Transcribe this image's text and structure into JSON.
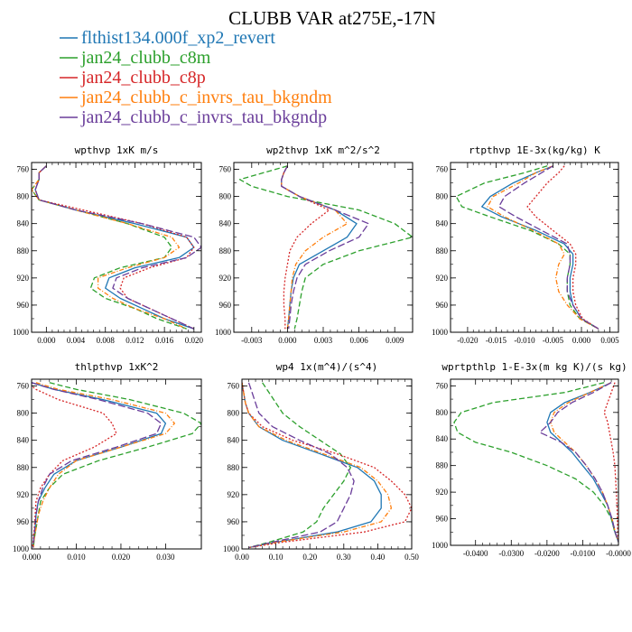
{
  "title": "CLUBB VAR at275E,-17N",
  "series": [
    {
      "name": "flthist134.000f_xp2_revert",
      "color": "#1f77b4",
      "dash": ""
    },
    {
      "name": "jan24_clubb_c8m",
      "color": "#2ca02c",
      "dash": "6,3"
    },
    {
      "name": "jan24_clubb_c8p",
      "color": "#d62728",
      "dash": "2,2"
    },
    {
      "name": "jan24_clubb_c_invrs_tau_bkgndm",
      "color": "#ff7f0e",
      "dash": "5,2,1,2"
    },
    {
      "name": "jan24_clubb_c_invrs_tau_bkgndp",
      "color": "#6a3d9a",
      "dash": "8,3"
    }
  ],
  "chart_data": [
    {
      "type": "line",
      "title": "wpthvp  1xK m/s",
      "xlim": [
        -0.002,
        0.021
      ],
      "ylim": [
        1000,
        750
      ],
      "xticks": [
        0.0,
        0.004,
        0.008,
        0.012,
        0.016,
        0.02
      ],
      "xtick_labels": [
        "0.000",
        "0.004",
        "0.008",
        "0.012",
        "0.016",
        "0.020"
      ],
      "yticks": [
        760,
        800,
        840,
        880,
        920,
        960,
        1000
      ],
      "y": [
        755,
        765,
        775,
        790,
        805,
        820,
        840,
        860,
        875,
        890,
        905,
        920,
        935,
        950,
        965,
        980,
        995
      ],
      "series_x": [
        [
          0.0,
          -0.001,
          -0.001,
          -0.0015,
          -0.001,
          0.004,
          0.012,
          0.019,
          0.02,
          0.018,
          0.012,
          0.0085,
          0.008,
          0.01,
          0.013,
          0.016,
          0.02
        ],
        [
          0.0,
          -0.001,
          -0.001,
          -0.002,
          -0.001,
          0.004,
          0.011,
          0.016,
          0.017,
          0.016,
          0.01,
          0.0065,
          0.006,
          0.008,
          0.012,
          0.015,
          0.019
        ],
        [
          0.0,
          -0.001,
          -0.001,
          -0.0015,
          -0.001,
          0.005,
          0.013,
          0.019,
          0.02,
          0.019,
          0.014,
          0.0105,
          0.01,
          0.011,
          0.014,
          0.017,
          0.02
        ],
        [
          0.0,
          -0.001,
          -0.001,
          -0.002,
          -0.001,
          0.004,
          0.011,
          0.017,
          0.018,
          0.016,
          0.011,
          0.007,
          0.007,
          0.009,
          0.012,
          0.016,
          0.019
        ],
        [
          0.0,
          -0.001,
          -0.001,
          -0.0015,
          -0.001,
          0.004,
          0.013,
          0.02,
          0.021,
          0.019,
          0.013,
          0.0095,
          0.009,
          0.011,
          0.014,
          0.017,
          0.02
        ]
      ]
    },
    {
      "type": "line",
      "title": "wp2thvp  1xK m^2/s^2",
      "xlim": [
        -0.0045,
        0.0105
      ],
      "ylim": [
        1000,
        750
      ],
      "xticks": [
        -0.003,
        0.0,
        0.003,
        0.006,
        0.009
      ],
      "xtick_labels": [
        "-0.003",
        "0.000",
        "0.003",
        "0.006",
        "0.009"
      ],
      "yticks": [
        760,
        800,
        840,
        880,
        920,
        960,
        1000
      ],
      "y": [
        755,
        765,
        775,
        785,
        800,
        820,
        840,
        860,
        880,
        900,
        920,
        940,
        960,
        980,
        995
      ],
      "series_x": [
        [
          0.0,
          -0.0003,
          -0.0005,
          -0.0005,
          0.001,
          0.004,
          0.0058,
          0.005,
          0.003,
          0.001,
          0.0005,
          0.0003,
          0.0002,
          0.0001,
          0.0
        ],
        [
          0.0,
          -0.002,
          -0.004,
          -0.003,
          0.0,
          0.006,
          0.009,
          0.0105,
          0.006,
          0.003,
          0.0015,
          0.0012,
          0.001,
          0.0008,
          0.0006
        ],
        [
          0.0,
          -0.0003,
          -0.0005,
          -0.0005,
          0.001,
          0.0035,
          0.002,
          0.0008,
          0.0002,
          0.0,
          -0.0002,
          -0.0003,
          -0.0003,
          -0.0002,
          -0.0002
        ],
        [
          0.0,
          -0.0003,
          -0.0005,
          -0.0005,
          0.001,
          0.004,
          0.005,
          0.003,
          0.0015,
          0.0007,
          0.0004,
          0.0003,
          0.0002,
          0.0001,
          0.0
        ],
        [
          0.0,
          -0.0003,
          -0.0005,
          -0.0005,
          0.001,
          0.004,
          0.0068,
          0.006,
          0.0035,
          0.0015,
          0.0008,
          0.0005,
          0.0003,
          0.0002,
          0.0001
        ]
      ]
    },
    {
      "type": "line",
      "title": "rtpthvp  1E-3x(kg/kg) K",
      "xlim": [
        -0.023,
        0.0065
      ],
      "ylim": [
        1000,
        750
      ],
      "xticks": [
        -0.02,
        -0.015,
        -0.01,
        -0.005,
        0.0,
        0.005
      ],
      "xtick_labels": [
        "-0.020",
        "-0.015",
        "-0.010",
        "-0.005",
        "0.000",
        "0.005"
      ],
      "yticks": [
        760,
        800,
        840,
        880,
        920,
        960,
        1000
      ],
      "y": [
        755,
        765,
        780,
        800,
        815,
        830,
        850,
        870,
        885,
        900,
        920,
        940,
        960,
        980,
        995
      ],
      "series_x": [
        [
          -0.005,
          -0.008,
          -0.012,
          -0.016,
          -0.0175,
          -0.014,
          -0.008,
          -0.003,
          -0.0015,
          -0.0015,
          -0.002,
          -0.002,
          -0.0015,
          0.0,
          0.003
        ],
        [
          -0.006,
          -0.01,
          -0.017,
          -0.022,
          -0.021,
          -0.016,
          -0.009,
          -0.004,
          -0.002,
          -0.002,
          -0.0025,
          -0.0025,
          -0.002,
          -0.0003,
          0.003
        ],
        [
          -0.003,
          -0.004,
          -0.006,
          -0.008,
          -0.0095,
          -0.008,
          -0.005,
          -0.002,
          -0.001,
          -0.001,
          -0.0015,
          -0.0015,
          -0.001,
          0.0002,
          0.003
        ],
        [
          -0.005,
          -0.008,
          -0.011,
          -0.0155,
          -0.0165,
          -0.0135,
          -0.0085,
          -0.004,
          -0.003,
          -0.004,
          -0.0045,
          -0.004,
          -0.0025,
          -0.0003,
          0.003
        ],
        [
          -0.005,
          -0.007,
          -0.01,
          -0.0135,
          -0.0145,
          -0.0115,
          -0.007,
          -0.0025,
          -0.002,
          -0.002,
          -0.0025,
          -0.0025,
          -0.0015,
          0.0,
          0.003
        ]
      ]
    },
    {
      "type": "line",
      "title": "thlpthvp  1xK^2",
      "xlim": [
        0.0,
        0.038
      ],
      "ylim": [
        1000,
        750
      ],
      "xticks": [
        0.0,
        0.01,
        0.02,
        0.03
      ],
      "xtick_labels": [
        "0.000",
        "0.010",
        "0.020",
        "0.030"
      ],
      "yticks": [
        760,
        800,
        840,
        880,
        920,
        960,
        1000
      ],
      "y": [
        755,
        765,
        780,
        800,
        815,
        830,
        850,
        870,
        890,
        910,
        930,
        950,
        970,
        985,
        998
      ],
      "series_x": [
        [
          0.0,
          0.005,
          0.016,
          0.028,
          0.03,
          0.029,
          0.02,
          0.01,
          0.005,
          0.003,
          0.0015,
          0.001,
          0.0008,
          0.0005,
          0.0003
        ],
        [
          0.004,
          0.01,
          0.022,
          0.034,
          0.038,
          0.036,
          0.026,
          0.015,
          0.007,
          0.004,
          0.002,
          0.0015,
          0.001,
          0.0006,
          0.0004
        ],
        [
          -0.001,
          0.001,
          0.006,
          0.016,
          0.018,
          0.019,
          0.014,
          0.007,
          0.004,
          0.002,
          0.001,
          0.0008,
          0.0006,
          0.0004,
          0.0002
        ],
        [
          0.001,
          0.006,
          0.018,
          0.03,
          0.032,
          0.03,
          0.02,
          0.01,
          0.006,
          0.004,
          0.0025,
          0.0015,
          0.001,
          0.0006,
          0.0004
        ],
        [
          0.0,
          0.005,
          0.015,
          0.026,
          0.029,
          0.028,
          0.019,
          0.009,
          0.004,
          0.0025,
          0.0015,
          0.001,
          0.0007,
          0.0005,
          0.0003
        ]
      ]
    },
    {
      "type": "line",
      "title": "wp4  1x(m^4)/(s^4)",
      "xlim": [
        0.0,
        0.5
      ],
      "ylim": [
        1000,
        750
      ],
      "xticks": [
        0.0,
        0.1,
        0.2,
        0.3,
        0.4,
        0.5
      ],
      "xtick_labels": [
        "0.00",
        "0.10",
        "0.20",
        "0.30",
        "0.40",
        "0.50"
      ],
      "yticks": [
        760,
        800,
        840,
        880,
        920,
        960,
        1000
      ],
      "y": [
        755,
        770,
        785,
        800,
        820,
        840,
        860,
        880,
        900,
        920,
        940,
        960,
        975,
        990,
        998
      ],
      "series_x": [
        [
          0.0,
          0.005,
          0.01,
          0.02,
          0.05,
          0.12,
          0.23,
          0.34,
          0.39,
          0.41,
          0.41,
          0.38,
          0.28,
          0.1,
          0.02
        ],
        [
          0.06,
          0.08,
          0.1,
          0.12,
          0.17,
          0.23,
          0.29,
          0.32,
          0.3,
          0.27,
          0.24,
          0.22,
          0.18,
          0.08,
          0.02
        ],
        [
          0.0,
          0.005,
          0.01,
          0.02,
          0.06,
          0.15,
          0.28,
          0.39,
          0.44,
          0.48,
          0.5,
          0.48,
          0.36,
          0.12,
          0.02
        ],
        [
          0.0,
          0.005,
          0.01,
          0.02,
          0.05,
          0.13,
          0.24,
          0.35,
          0.4,
          0.43,
          0.44,
          0.41,
          0.3,
          0.1,
          0.02
        ],
        [
          0.02,
          0.03,
          0.04,
          0.05,
          0.09,
          0.17,
          0.26,
          0.31,
          0.33,
          0.32,
          0.3,
          0.28,
          0.23,
          0.09,
          0.02
        ]
      ]
    },
    {
      "type": "line",
      "title": "wprtpthlp  1-E-3x(m kg K)/(s kg)",
      "xlim": [
        -0.047,
        0.0
      ],
      "ylim": [
        1000,
        750
      ],
      "xticks": [
        -0.04,
        -0.03,
        -0.02,
        -0.01,
        0.0
      ],
      "xtick_labels": [
        "-0.0400",
        "-0.0300",
        "-0.0200",
        "-0.0100",
        "-0.0000"
      ],
      "yticks": [
        760,
        800,
        840,
        880,
        920,
        960,
        1000
      ],
      "y": [
        755,
        770,
        785,
        800,
        815,
        830,
        845,
        860,
        880,
        900,
        920,
        940,
        960,
        980,
        995
      ],
      "series_x": [
        [
          -0.002,
          -0.008,
          -0.015,
          -0.019,
          -0.02,
          -0.019,
          -0.016,
          -0.013,
          -0.01,
          -0.007,
          -0.005,
          -0.003,
          -0.002,
          -0.001,
          0.0
        ],
        [
          -0.004,
          -0.015,
          -0.035,
          -0.044,
          -0.046,
          -0.045,
          -0.04,
          -0.03,
          -0.02,
          -0.012,
          -0.007,
          -0.004,
          -0.002,
          -0.001,
          0.0
        ],
        [
          -0.001,
          -0.002,
          -0.003,
          -0.004,
          -0.003,
          -0.0025,
          -0.002,
          -0.0015,
          -0.001,
          -0.0008,
          -0.0006,
          -0.0004,
          -0.0003,
          -0.0002,
          0.0
        ],
        [
          -0.002,
          -0.008,
          -0.014,
          -0.018,
          -0.019,
          -0.018,
          -0.015,
          -0.012,
          -0.009,
          -0.0065,
          -0.0045,
          -0.003,
          -0.0018,
          -0.0009,
          0.0
        ],
        [
          -0.002,
          -0.007,
          -0.013,
          -0.017,
          -0.019,
          -0.022,
          -0.016,
          -0.012,
          -0.009,
          -0.0065,
          -0.0045,
          -0.003,
          -0.0018,
          -0.0009,
          0.0
        ]
      ]
    }
  ]
}
